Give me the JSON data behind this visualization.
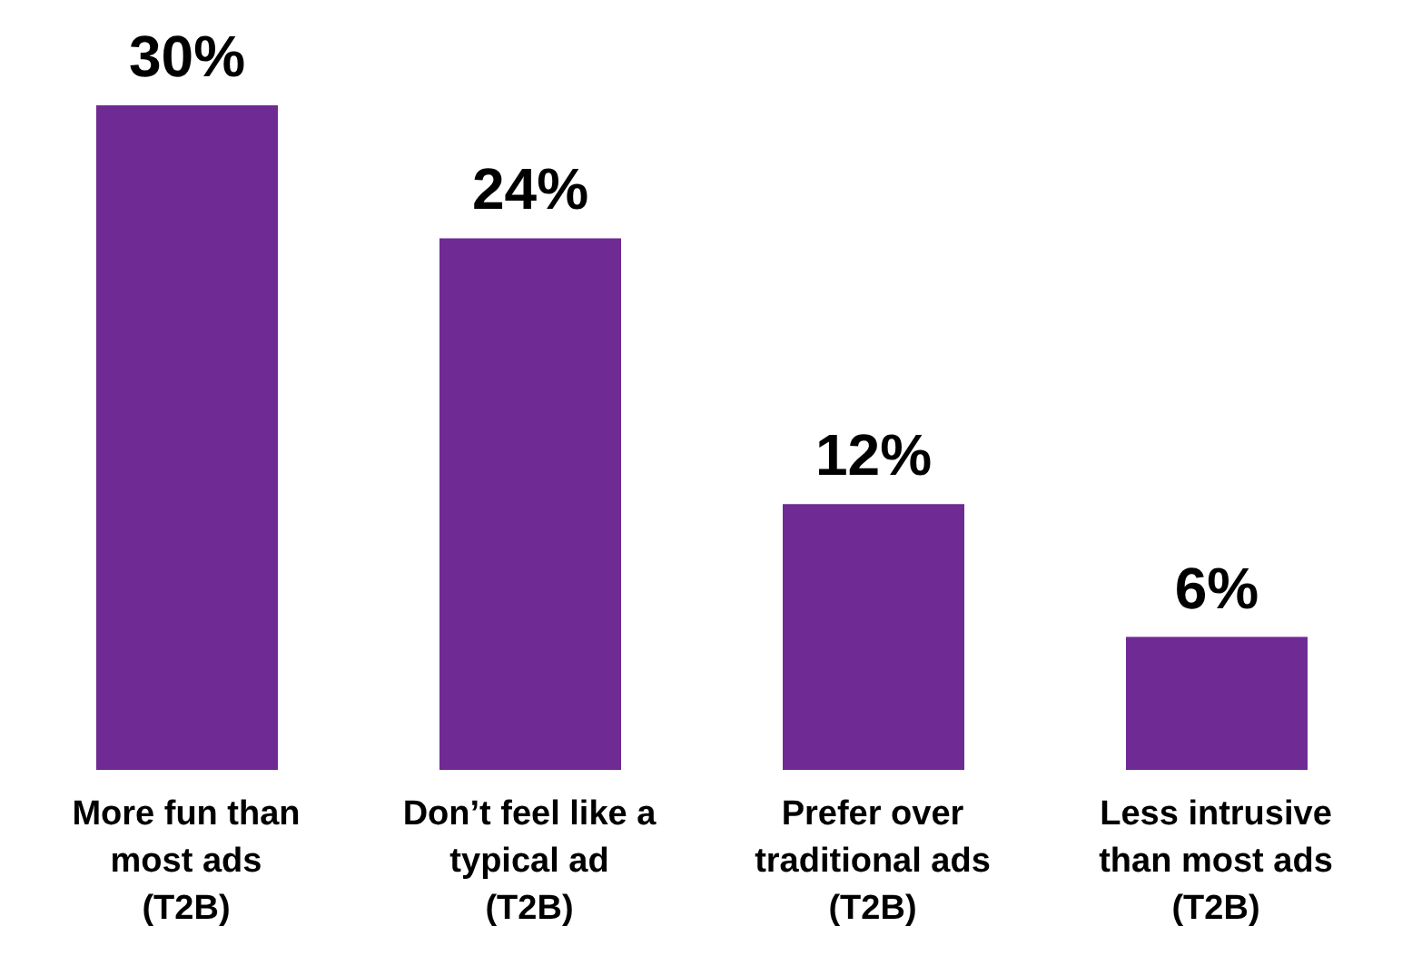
{
  "chart_data": {
    "type": "bar",
    "categories": [
      "More fun than\nmost ads\n(T2B)",
      "Don’t feel like a\ntypical ad\n(T2B)",
      "Prefer over\ntraditional ads\n(T2B)",
      "Less intrusive\nthan most ads\n(T2B)"
    ],
    "values": [
      30,
      24,
      12,
      6
    ],
    "color": "#6f2a93",
    "value_labels": [
      "30%",
      "24%",
      "12%",
      "6%"
    ]
  }
}
